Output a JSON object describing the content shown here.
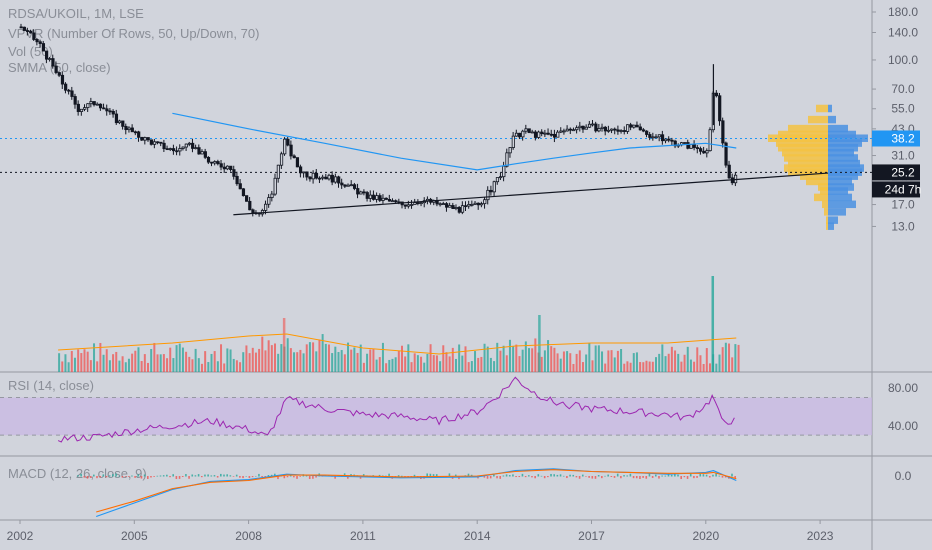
{
  "legends": {
    "main_line1": "RDSA/UKOIL, 1M, LSE",
    "main_line2": "VPVR (Number Of Rows, 50, Up/Down, 70)",
    "main_line3": "Vol (50)",
    "main_line4": "SMMA (50, close)",
    "rsi": "RSI (14, close)",
    "macd": "MACD (12, 26, close, 9)"
  },
  "price_axis": {
    "ticks": [
      "180.0",
      "140.0",
      "100.0",
      "70.0",
      "55.0",
      "43.0",
      "31.0",
      "17.0",
      "13.0"
    ],
    "ticks_faint": [
      "24.0"
    ]
  },
  "price_tags": {
    "last_price": "25.2",
    "hline_level": "38.2",
    "countdown": "24d 7h"
  },
  "rsi_axis": {
    "ticks": [
      "80.00",
      "40.00"
    ]
  },
  "macd_axis": {
    "ticks": [
      "0.0"
    ]
  },
  "time_axis": {
    "labels": [
      "2002",
      "2005",
      "2008",
      "2011",
      "2014",
      "2017",
      "2020",
      "2023"
    ]
  },
  "colors": {
    "background": "#d1d4dc",
    "candle": "#131722",
    "smma": "#2196f3",
    "vol_up": "#26a69a",
    "vol_down": "#ef5350",
    "vol_ma": "#ff9800",
    "rsi_line": "#9c27b0",
    "rsi_band": "#c9b6e4",
    "vpvr_up": "#f5c242",
    "vpvr_down": "#4a90e2",
    "macd": "#2196f3",
    "signal": "#ff6d00",
    "tag_dark": "#131722",
    "tag_blue": "#2196f3"
  },
  "chart_data": [
    {
      "type": "candlestick",
      "title": "RDSA/UKOIL, 1M, LSE",
      "scale": "log",
      "ylim": [
        11,
        200
      ],
      "x": [
        2002.0,
        2002.5,
        2003.0,
        2003.5,
        2004.0,
        2004.5,
        2005.0,
        2005.5,
        2006.0,
        2006.5,
        2007.0,
        2007.5,
        2008.0,
        2008.3,
        2008.6,
        2008.9,
        2009.0,
        2009.3,
        2009.6,
        2010.0,
        2010.5,
        2011.0,
        2011.5,
        2012.0,
        2012.5,
        2013.0,
        2013.5,
        2014.0,
        2014.3,
        2014.6,
        2014.9,
        2015.2,
        2015.5,
        2016.0,
        2016.5,
        2017.0,
        2017.5,
        2018.0,
        2018.5,
        2019.0,
        2019.5,
        2020.0,
        2020.1,
        2020.2,
        2020.3,
        2020.4,
        2020.5,
        2020.6,
        2020.8
      ],
      "close": [
        150,
        120,
        80,
        55,
        60,
        48,
        40,
        36,
        33,
        35,
        28,
        27,
        16,
        15,
        20,
        38,
        34,
        26,
        24,
        24,
        22,
        19,
        18,
        17,
        18,
        17,
        16,
        17,
        20,
        25,
        38,
        42,
        40,
        40,
        44,
        44,
        42,
        44,
        40,
        37,
        35,
        33,
        43,
        80,
        52,
        40,
        27,
        22,
        25.2
      ]
    },
    {
      "type": "line",
      "name": "SMMA (50, close)",
      "x": [
        2006.0,
        2008.0,
        2010.0,
        2012.0,
        2014.0,
        2015.0,
        2016.0,
        2017.0,
        2018.0,
        2019.0,
        2020.0,
        2020.8
      ],
      "values": [
        52,
        43,
        36,
        30,
        26,
        28,
        30,
        32,
        34,
        35,
        36,
        34
      ]
    },
    {
      "type": "line",
      "name": "RSI (14, close)",
      "ylim": [
        10,
        95
      ],
      "x": [
        2002.0,
        2003.0,
        2004.0,
        2005.0,
        2006.0,
        2007.0,
        2008.0,
        2008.5,
        2009.0,
        2010.0,
        2011.0,
        2012.0,
        2013.0,
        2014.0,
        2014.5,
        2015.0,
        2015.5,
        2016.0,
        2017.0,
        2018.0,
        2019.0,
        2019.5,
        2020.0,
        2020.2,
        2020.4,
        2020.8
      ],
      "values": [
        20,
        26,
        28,
        35,
        40,
        45,
        36,
        28,
        68,
        58,
        52,
        50,
        45,
        55,
        70,
        90,
        75,
        65,
        58,
        55,
        52,
        48,
        62,
        72,
        45,
        45
      ]
    },
    {
      "type": "line",
      "name": "MACD (12, 26, close, 9)",
      "x": [
        2004.0,
        2005.0,
        2006.0,
        2007.0,
        2008.0,
        2009.0,
        2010.0,
        2012.0,
        2014.0,
        2015.0,
        2016.0,
        2017.0,
        2018.0,
        2019.0,
        2020.0,
        2020.2,
        2020.8
      ],
      "series": [
        {
          "values": [
            -45,
            -30,
            -15,
            -6,
            -4,
            2,
            0,
            -2,
            -1,
            6,
            8,
            5,
            4,
            2,
            4,
            6,
            -5
          ]
        },
        {
          "values": [
            -40,
            -28,
            -14,
            -7,
            -5,
            1,
            1,
            -1,
            0,
            5,
            7,
            5,
            4,
            3,
            3,
            4,
            -3
          ]
        }
      ]
    }
  ]
}
